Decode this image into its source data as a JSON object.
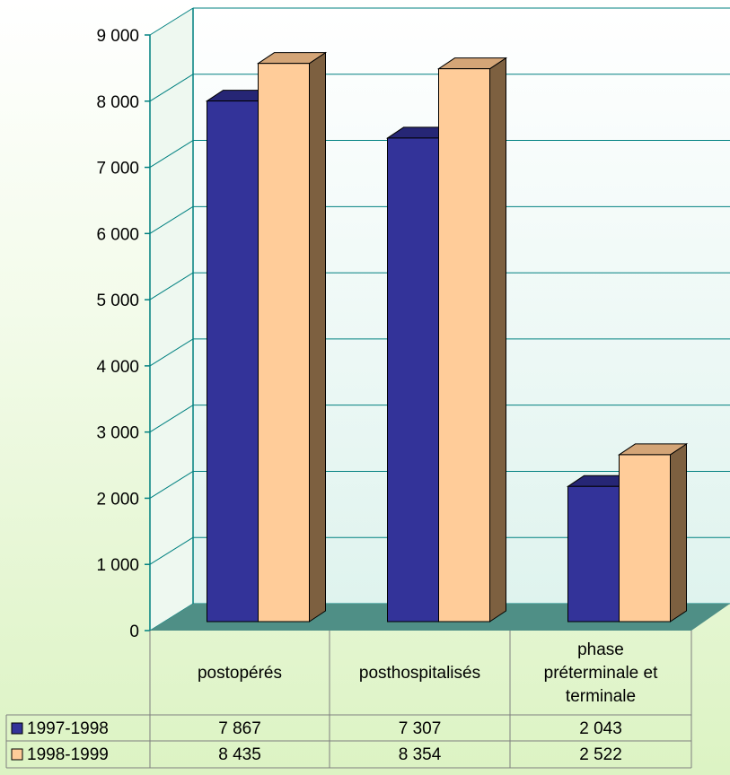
{
  "chart_data": {
    "type": "bar",
    "title": "",
    "xlabel": "",
    "ylabel": "",
    "ylim": [
      0,
      9000
    ],
    "ytick_values": [
      0,
      1000,
      2000,
      3000,
      4000,
      5000,
      6000,
      7000,
      8000,
      9000
    ],
    "ytick_labels": [
      "0",
      "1 000",
      "2 000",
      "3 000",
      "4 000",
      "5 000",
      "6 000",
      "7 000",
      "8 000",
      "9 000"
    ],
    "categories": [
      "postopérés",
      "posthospitalisés",
      "phase préterminale et terminale"
    ],
    "category_lines": [
      [
        "postopérés"
      ],
      [
        "posthospitalisés"
      ],
      [
        "phase",
        "préterminale et",
        "terminale"
      ]
    ],
    "series": [
      {
        "name": "1997-1998",
        "values": [
          7867,
          7307,
          2043
        ],
        "labels": [
          "7 867",
          "7 307",
          "2 043"
        ],
        "color": "#333399"
      },
      {
        "name": "1998-1999",
        "values": [
          8435,
          8354,
          2522
        ],
        "labels": [
          "8 435",
          "8 354",
          "2 522"
        ],
        "color": "#ffcc99"
      }
    ],
    "grid": true,
    "legend": "data-table",
    "style": "3d-columns",
    "colors": {
      "wall": "#e8f8f4",
      "floor": "#4f8f86",
      "axis": "#008080",
      "table_border": "#7f7f7f"
    }
  }
}
